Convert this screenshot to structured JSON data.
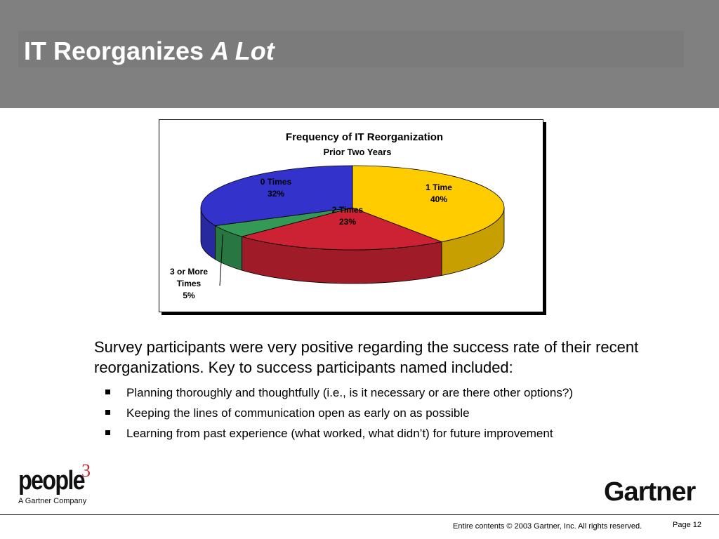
{
  "slide": {
    "title_main": "IT Reorganizes ",
    "title_emph": "A Lot",
    "body_intro": "Survey participants were very positive regarding the success rate of their recent reorganizations.  Key to success participants named included:",
    "bullets": [
      "Planning thoroughly and thoughtfully (i.e., is it necessary or are there other options?)",
      "Keeping the lines of communication open as early on as possible",
      "Learning from past experience (what worked, what didn’t) for future improvement"
    ]
  },
  "chart_data": {
    "type": "pie",
    "title": "Frequency of IT Reorganization",
    "subtitle": "Prior Two Years",
    "slices": [
      {
        "label": "0 Times",
        "value": 32,
        "value_label": "32%",
        "color": "#3333cc"
      },
      {
        "label": "1 Time",
        "value": 40,
        "value_label": "40%",
        "color": "#ffcc00"
      },
      {
        "label": "2 Times",
        "value": 23,
        "value_label": "23%",
        "color": "#cc2233"
      },
      {
        "label": "3 or More Times",
        "value": 5,
        "value_label": "5%",
        "color": "#339955"
      }
    ]
  },
  "branding": {
    "people_word": "people",
    "people_sup": "3",
    "people_sub": "A Gartner Company",
    "gartner": "Gartner"
  },
  "footer": {
    "copyright": "Entire contents © 2003 Gartner, Inc. All rights reserved.",
    "page": "Page 12"
  }
}
